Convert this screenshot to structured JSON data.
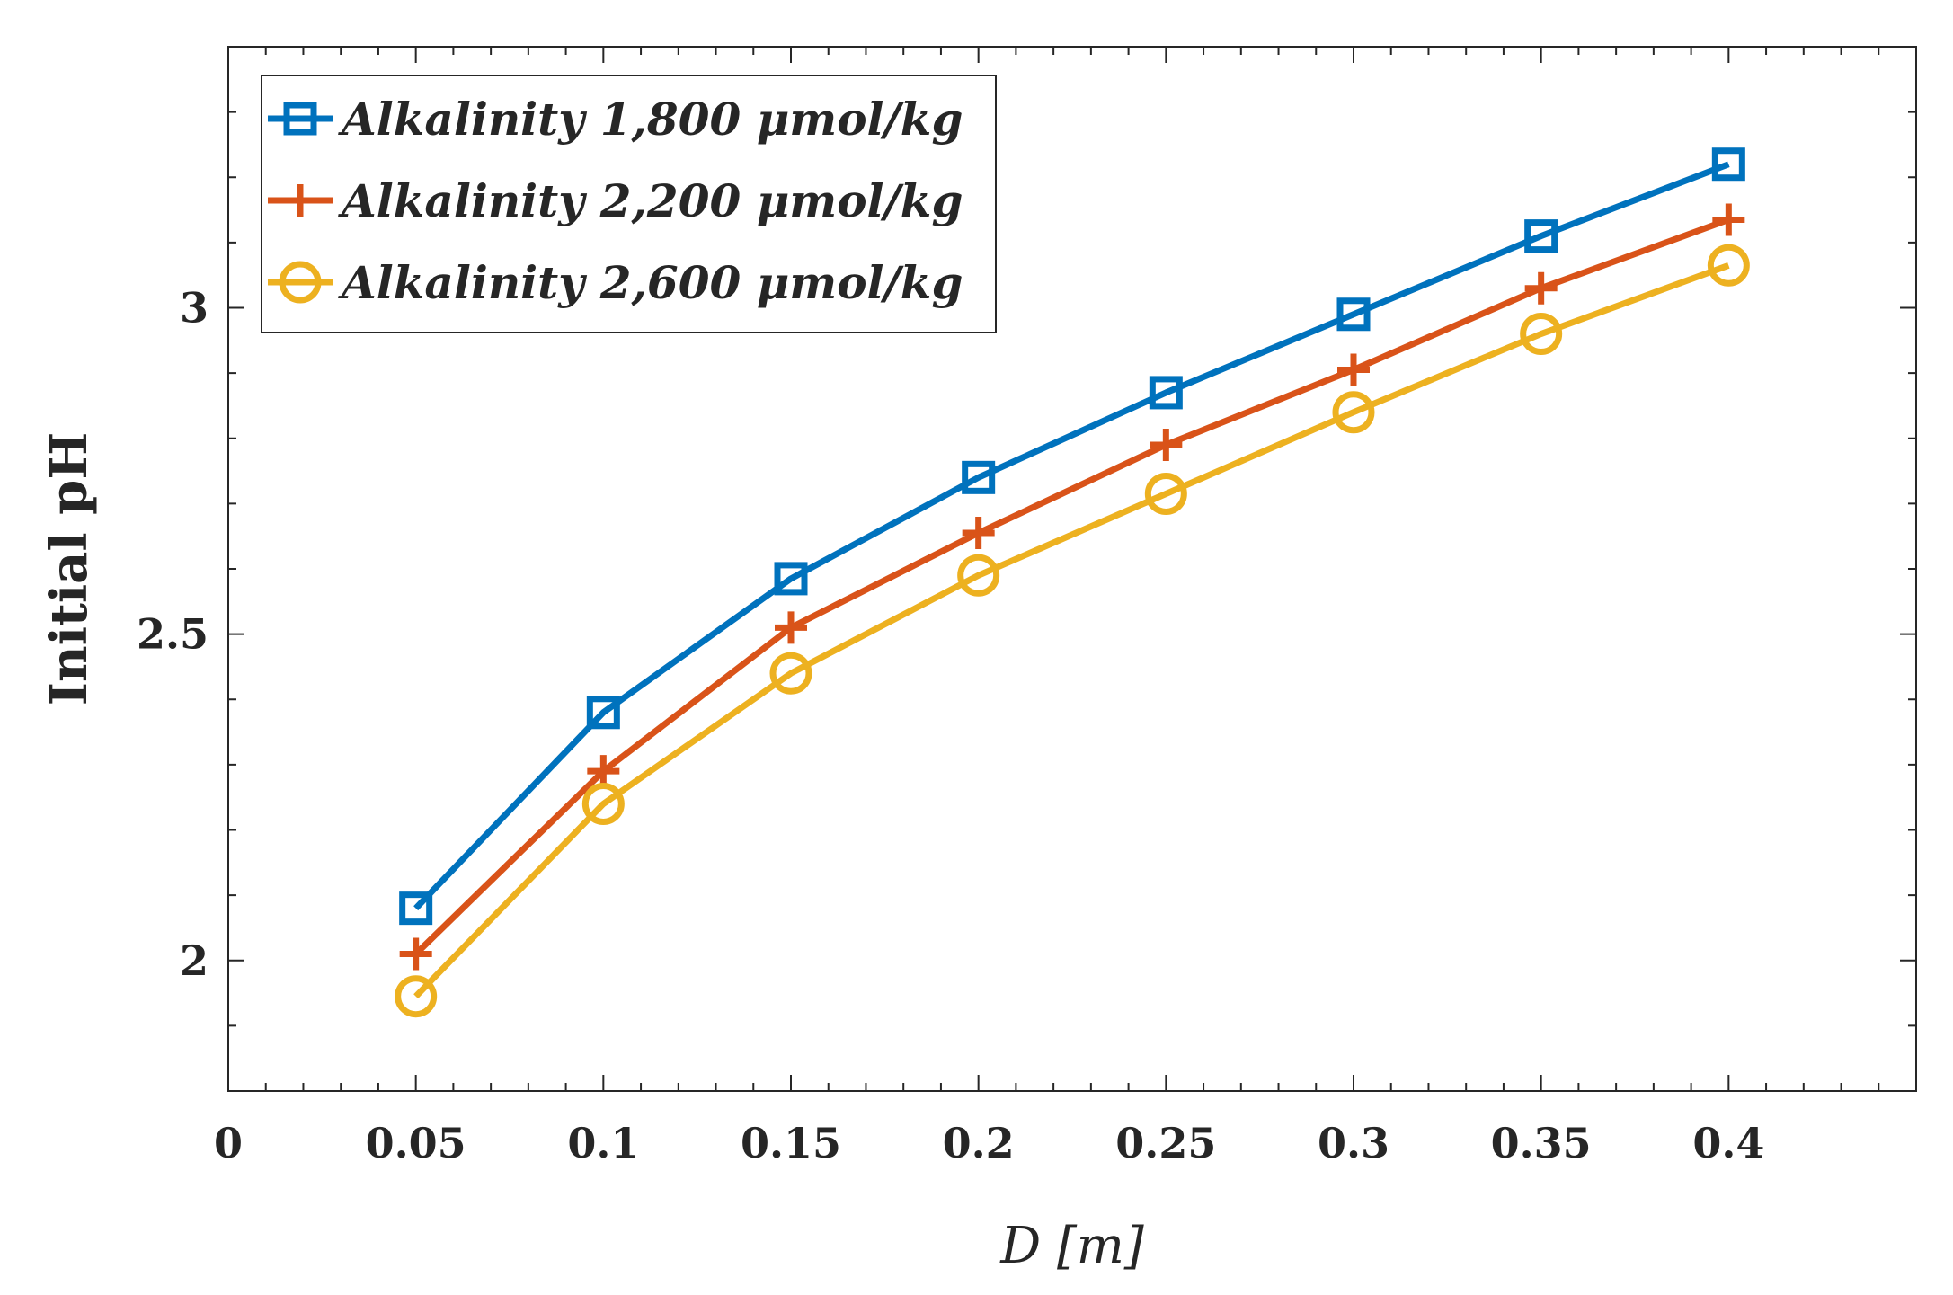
{
  "chart_data": {
    "type": "line",
    "title": "",
    "xlabel": "D [m]",
    "ylabel": "Initial pH",
    "xlim": [
      0,
      0.45
    ],
    "ylim": [
      1.8,
      3.4
    ],
    "x": [
      0.05,
      0.1,
      0.15,
      0.2,
      0.25,
      0.3,
      0.35,
      0.4
    ],
    "x_ticks": [
      0,
      0.05,
      0.1,
      0.15,
      0.2,
      0.25,
      0.3,
      0.35,
      0.4
    ],
    "x_tick_labels": [
      "0",
      "0.05",
      "0.1",
      "0.15",
      "0.2",
      "0.25",
      "0.3",
      "0.35",
      "0.4"
    ],
    "y_ticks": [
      2,
      2.5,
      3
    ],
    "y_tick_labels": [
      "2",
      "2.5",
      "3"
    ],
    "grid": false,
    "legend_position": "top-left",
    "series": [
      {
        "name": "Alkalinity 1,800 μmol/kg",
        "color": "#0072BD",
        "marker": "square",
        "values": [
          2.08,
          2.38,
          2.585,
          2.74,
          2.87,
          2.99,
          3.11,
          3.22
        ]
      },
      {
        "name": "Alkalinity 2,200 μmol/kg",
        "color": "#D95319",
        "marker": "plus",
        "values": [
          2.01,
          2.29,
          2.51,
          2.655,
          2.79,
          2.905,
          3.03,
          3.135
        ]
      },
      {
        "name": "Alkalinity 2,600 μmol/kg",
        "color": "#EDB120",
        "marker": "circle",
        "values": [
          1.945,
          2.24,
          2.44,
          2.59,
          2.715,
          2.84,
          2.96,
          3.065
        ]
      }
    ]
  }
}
